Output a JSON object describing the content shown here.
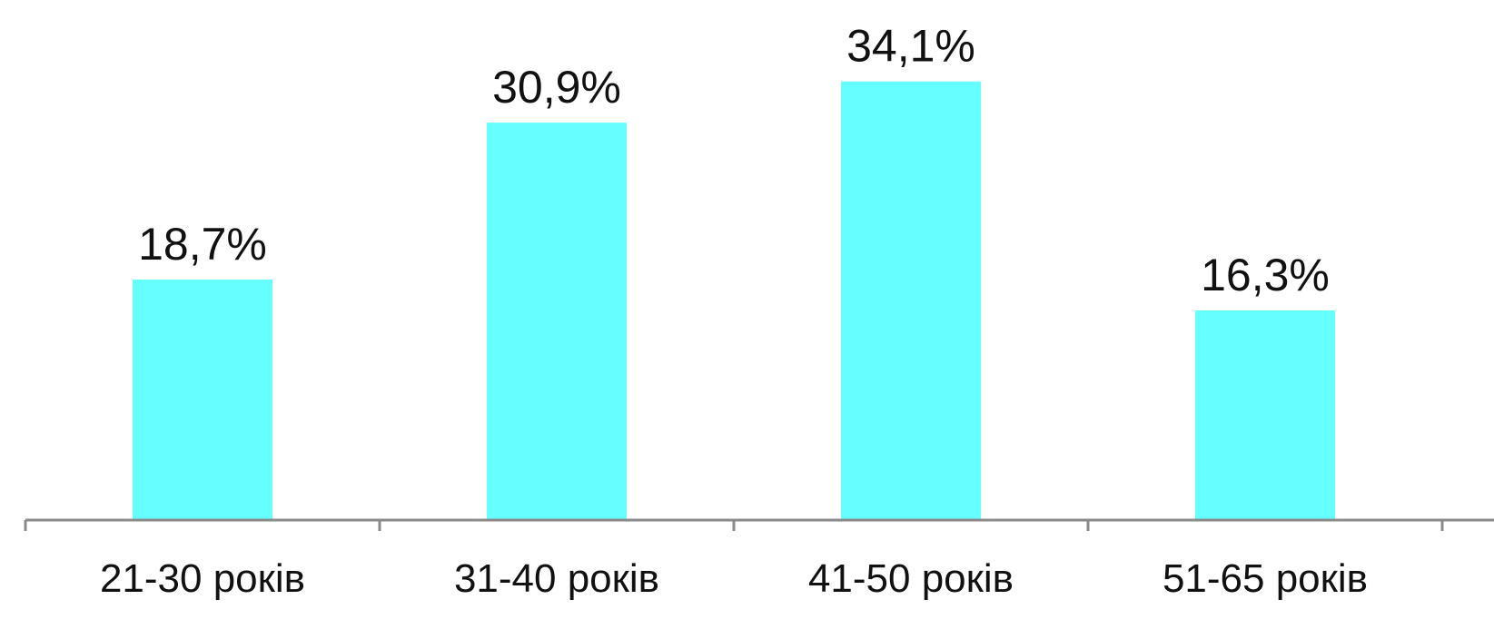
{
  "chart_data": {
    "type": "bar",
    "categories": [
      "21-30 років",
      "31-40 років",
      "41-50 років",
      "51-65 років"
    ],
    "values": [
      18.7,
      30.9,
      34.1,
      16.3
    ],
    "data_labels": [
      "18,7%",
      "30,9%",
      "34,1%",
      "16,3%"
    ],
    "title": "",
    "xlabel": "",
    "ylabel": "",
    "ylim": [
      0,
      40
    ],
    "grid": false,
    "legend": "none",
    "colors": {
      "bar": "#66FFFF",
      "axis": "#8a8a8a",
      "text": "#111111"
    }
  }
}
